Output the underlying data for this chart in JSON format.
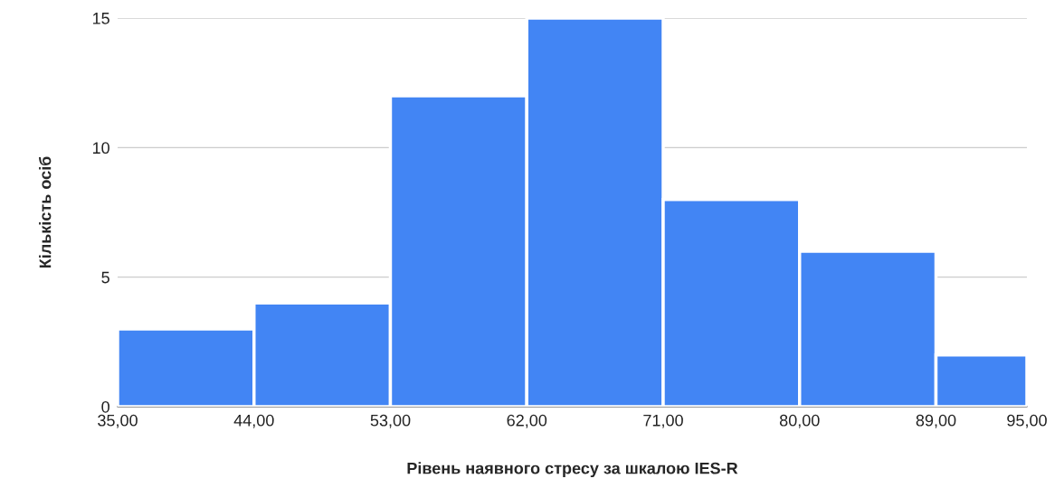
{
  "chart_data": {
    "type": "histogram",
    "xlabel": "Рівень наявного стресу за шкалою IES-R",
    "ylabel": "Кількість осіб",
    "bins": [
      35,
      44,
      53,
      62,
      71,
      80,
      89,
      95
    ],
    "values": [
      3,
      4,
      12,
      15,
      8,
      6,
      2
    ],
    "color": "#4285f4",
    "xlim": [
      35,
      95
    ],
    "xticks": [
      {
        "value": 35,
        "label": "35,00"
      },
      {
        "value": 44,
        "label": "44,00"
      },
      {
        "value": 53,
        "label": "53,00"
      },
      {
        "value": 62,
        "label": "62,00"
      },
      {
        "value": 71,
        "label": "71,00"
      },
      {
        "value": 80,
        "label": "80,00"
      },
      {
        "value": 89,
        "label": "89,00"
      },
      {
        "value": 95,
        "label": "95,00"
      }
    ],
    "ylim": [
      0,
      15
    ],
    "yticks": [
      0,
      5,
      10,
      15
    ],
    "grid": "y"
  }
}
